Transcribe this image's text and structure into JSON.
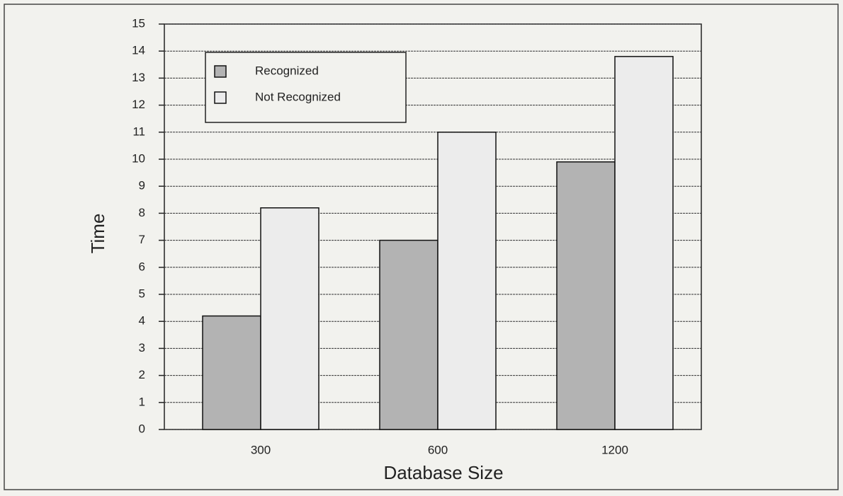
{
  "chart_data": {
    "type": "bar",
    "x_label": "Database Size",
    "y_label": "Time",
    "categories": [
      "300",
      "600",
      "1200"
    ],
    "series": [
      {
        "name": "Recognized",
        "color": "#b3b3b3",
        "values": [
          4.2,
          7,
          9.9
        ]
      },
      {
        "name": "Not Recognized",
        "color": "#ececec",
        "values": [
          8.2,
          11,
          13.8
        ]
      }
    ],
    "ylim": [
      0,
      15
    ],
    "yticks": [
      0,
      1,
      2,
      3,
      4,
      5,
      6,
      7,
      8,
      9,
      10,
      11,
      12,
      13,
      14,
      15
    ],
    "grid": true,
    "legend": "upper left"
  }
}
